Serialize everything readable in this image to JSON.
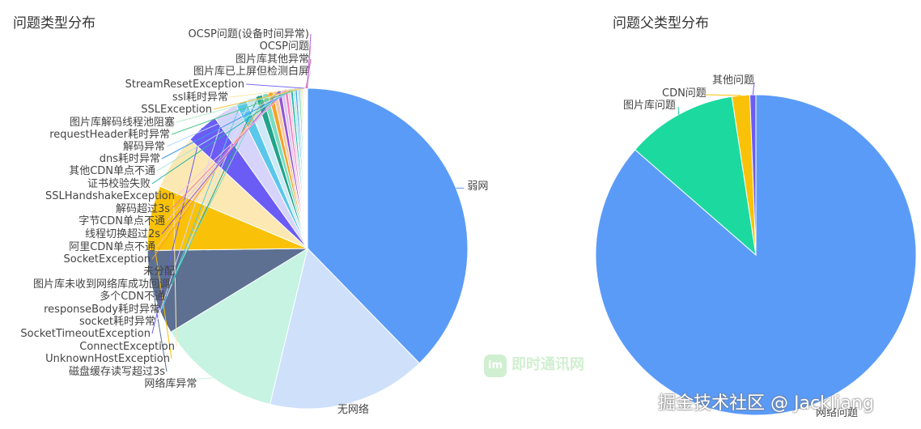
{
  "chart_data": [
    {
      "type": "pie",
      "title": "问题类型分布",
      "slices": [
        {
          "label": "弱网",
          "value": 38.0,
          "color": "#5b9bf8"
        },
        {
          "label": "无网络",
          "value": 16.2,
          "color": "#cfe0fb"
        },
        {
          "label": "网络库异常",
          "value": 12.6,
          "color": "#c6f3e2"
        },
        {
          "label": "磁盘缓存读写超过3s",
          "value": 8.6,
          "color": "#5d7092"
        },
        {
          "label": "UnknownHostException",
          "value": 6.6,
          "color": "#f9c208"
        },
        {
          "label": "ConnectException",
          "value": 5.6,
          "color": "#fce8b2"
        },
        {
          "label": "SocketTimeoutException",
          "value": 3.3,
          "color": "#6b5cf5"
        },
        {
          "label": "socket耗时异常",
          "value": 2.5,
          "color": "#d6d4fb"
        },
        {
          "label": "responseBody耗时异常",
          "value": 1.1,
          "color": "#59c7ea"
        },
        {
          "label": "多个CDN不通",
          "value": 1.0,
          "color": "#cde8f7"
        },
        {
          "label": "图片库未收到网络库成功回调",
          "value": 0.7,
          "color": "#22a38b"
        },
        {
          "label": "未分配",
          "value": 0.6,
          "color": "#7bdbc3"
        },
        {
          "label": "SocketException",
          "value": 0.5,
          "color": "#f7a028"
        },
        {
          "label": "阿里CDN单点不通",
          "value": 0.45,
          "color": "#f7c8a0"
        },
        {
          "label": "线程切换超过2s",
          "value": 0.4,
          "color": "#9253d8"
        },
        {
          "label": "字节CDN单点不通",
          "value": 0.35,
          "color": "#dbc2f2"
        },
        {
          "label": "解码超过3s",
          "value": 0.3,
          "color": "#f07ab8"
        },
        {
          "label": "SSLHandshakeException",
          "value": 0.28,
          "color": "#f8c8de"
        },
        {
          "label": "证书校验失败",
          "value": 0.25,
          "color": "#1fb6a8"
        },
        {
          "label": "其他CDN单点不通",
          "value": 0.22,
          "color": "#a7e6de"
        },
        {
          "label": "dns耗时异常",
          "value": 0.2,
          "color": "#3d9bf0"
        },
        {
          "label": "解码异常",
          "value": 0.18,
          "color": "#b9dbfb"
        },
        {
          "label": "requestHeader耗时异常",
          "value": 0.16,
          "color": "#4fc98a"
        },
        {
          "label": "图片库解码线程池阻塞",
          "value": 0.14,
          "color": "#bdeacd"
        },
        {
          "label": "SSLException",
          "value": 0.12,
          "color": "#f5c242"
        },
        {
          "label": "ssl耗时异常",
          "value": 0.1,
          "color": "#fbe7a7"
        },
        {
          "label": "StreamResetException",
          "value": 0.09,
          "color": "#7c6df2"
        },
        {
          "label": "图片库已上屏但检测白屏",
          "value": 0.08,
          "color": "#cfc9fb"
        },
        {
          "label": "图片库其他异常",
          "value": 0.07,
          "color": "#e0559b"
        },
        {
          "label": "OCSP问题",
          "value": 0.06,
          "color": "#f3b9d3"
        },
        {
          "label": "OCSP问题(设备时间异常)",
          "value": 0.05,
          "color": "#b15ee0"
        }
      ]
    },
    {
      "type": "pie",
      "title": "问题父类型分布",
      "slices": [
        {
          "label": "网络问题",
          "value": 86.4,
          "color": "#5b9bf8"
        },
        {
          "label": "图片库问题",
          "value": 11.2,
          "color": "#1cd9a0"
        },
        {
          "label": "CDN问题",
          "value": 1.8,
          "color": "#f9c208"
        },
        {
          "label": "其他问题",
          "value": 0.6,
          "color": "#6b5cf5"
        }
      ]
    }
  ],
  "watermark": {
    "logo_text": "即时通讯网",
    "logo_badge": "im",
    "credit": "掘金技术社区 @ JackJiang"
  }
}
